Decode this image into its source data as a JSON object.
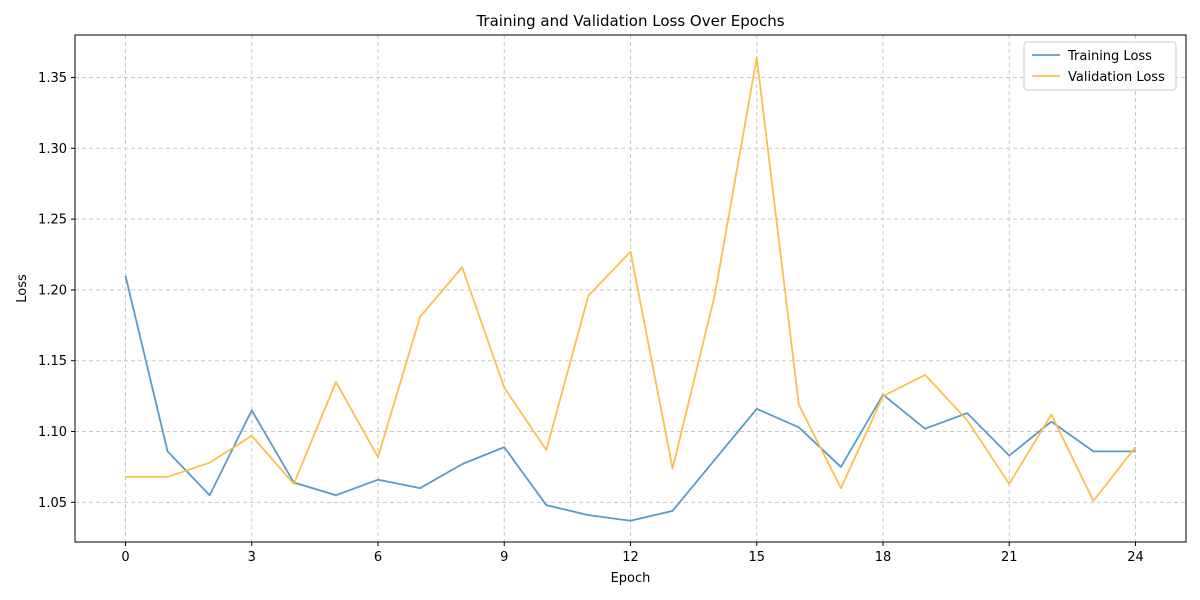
{
  "chart_data": {
    "type": "line",
    "title": "Training and Validation Loss Over Epochs",
    "xlabel": "Epoch",
    "ylabel": "Loss",
    "x": [
      0,
      1,
      2,
      3,
      4,
      5,
      6,
      7,
      8,
      9,
      10,
      11,
      12,
      13,
      14,
      15,
      16,
      17,
      18,
      19,
      20,
      21,
      22,
      23,
      24
    ],
    "xticks": [
      0,
      3,
      6,
      9,
      12,
      15,
      18,
      21,
      24
    ],
    "xlim": [
      -1.2,
      25.2
    ],
    "yticks": [
      1.05,
      1.1,
      1.15,
      1.2,
      1.25,
      1.3,
      1.35
    ],
    "ytick_labels": [
      "1.05",
      "1.10",
      "1.15",
      "1.20",
      "1.25",
      "1.30",
      "1.35"
    ],
    "ylim": [
      1.022,
      1.38
    ],
    "grid": true,
    "legend_position": "top-right",
    "series": [
      {
        "name": "Training Loss",
        "color": "#5b9bc8",
        "values": [
          1.21,
          1.086,
          1.055,
          1.115,
          1.064,
          1.055,
          1.066,
          1.06,
          1.077,
          1.089,
          1.048,
          1.041,
          1.037,
          1.044,
          1.08,
          1.116,
          1.103,
          1.075,
          1.126,
          1.102,
          1.113,
          1.083,
          1.107,
          1.086,
          1.086
        ]
      },
      {
        "name": "Validation Loss",
        "color": "#fbbf4e",
        "values": [
          1.068,
          1.068,
          1.078,
          1.097,
          1.063,
          1.135,
          1.082,
          1.181,
          1.216,
          1.131,
          1.087,
          1.196,
          1.227,
          1.074,
          1.196,
          1.364,
          1.119,
          1.06,
          1.125,
          1.14,
          1.108,
          1.063,
          1.112,
          1.051,
          1.089
        ]
      }
    ]
  }
}
